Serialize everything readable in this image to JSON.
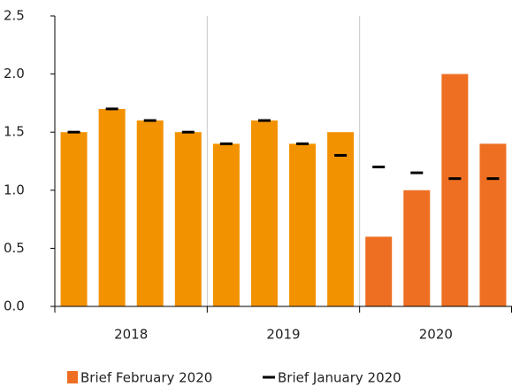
{
  "chart_data": {
    "type": "bar",
    "categories": [
      null,
      null,
      null,
      null,
      null,
      null,
      null,
      null,
      null,
      null,
      null,
      null
    ],
    "x_groups": [
      "2018",
      "2019",
      "2020"
    ],
    "series": [
      {
        "name": "Brief February 2020",
        "color": "#ee6f22",
        "colors": [
          "#f39200",
          "#f39200",
          "#f39200",
          "#f39200",
          "#f39200",
          "#f39200",
          "#f39200",
          "#f39200",
          "#ee6f22",
          "#ee6f22",
          "#ee6f22",
          "#ee6f22"
        ],
        "values": [
          1.5,
          1.7,
          1.6,
          1.5,
          1.4,
          1.6,
          1.4,
          1.5,
          0.6,
          1.0,
          2.0,
          1.4
        ]
      },
      {
        "name": "Brief January 2020",
        "color": "#000000",
        "marker": "dash",
        "values": [
          1.5,
          1.7,
          1.6,
          1.5,
          1.4,
          1.6,
          1.4,
          1.3,
          1.2,
          1.15,
          1.1,
          1.1
        ]
      }
    ],
    "ylim": [
      0,
      2.5
    ],
    "yticks": [
      {
        "value": 0,
        "label": "0.0"
      },
      0.5,
      {
        "value": 1,
        "label": "1.0"
      },
      1.5,
      {
        "value": 2,
        "label": "2.0"
      },
      2.5
    ]
  }
}
